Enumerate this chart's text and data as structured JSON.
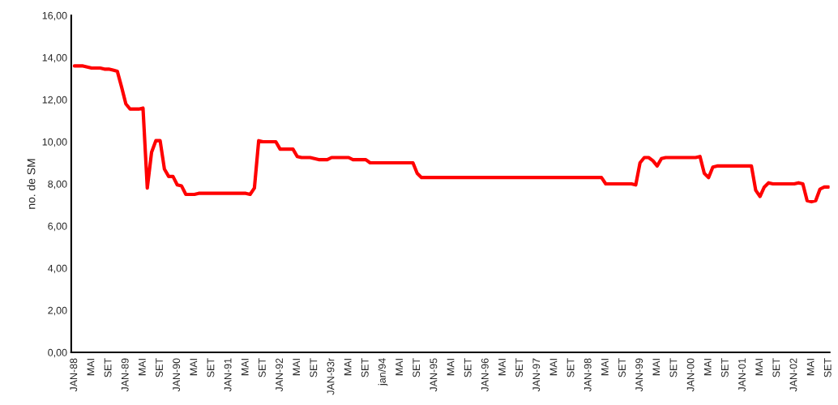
{
  "chart_data": {
    "type": "line",
    "ylabel": "no. de SM",
    "categories": [
      "JAN-88",
      null,
      null,
      null,
      "MAI",
      null,
      null,
      null,
      "SET",
      null,
      null,
      null,
      "JAN-89",
      null,
      null,
      null,
      "MAI",
      null,
      null,
      null,
      "SET",
      null,
      null,
      null,
      "JAN-90",
      null,
      null,
      null,
      "MAI",
      null,
      null,
      null,
      "SET",
      null,
      null,
      null,
      "JAN-91",
      null,
      null,
      null,
      "MAI",
      null,
      null,
      null,
      "SET",
      null,
      null,
      null,
      "JAN-92",
      null,
      null,
      null,
      "MAI",
      null,
      null,
      null,
      "SET",
      null,
      null,
      null,
      "JAN-93r",
      null,
      null,
      null,
      "MAI",
      null,
      null,
      null,
      "SET",
      null,
      null,
      null,
      "jan/94",
      null,
      null,
      null,
      "MAI",
      null,
      null,
      null,
      "SET",
      null,
      null,
      null,
      "JAN-95",
      null,
      null,
      null,
      "MAI",
      null,
      null,
      null,
      "SET",
      null,
      null,
      null,
      "JAN-96",
      null,
      null,
      null,
      "MAI",
      null,
      null,
      null,
      "SET",
      null,
      null,
      null,
      "JAN-97",
      null,
      null,
      null,
      "MAI",
      null,
      null,
      null,
      "SET",
      null,
      null,
      null,
      "JAN-98",
      null,
      null,
      null,
      "MAI",
      null,
      null,
      null,
      "SET",
      null,
      null,
      null,
      "JAN-99",
      null,
      null,
      null,
      "MAI",
      null,
      null,
      null,
      "SET",
      null,
      null,
      null,
      "JAN-00",
      null,
      null,
      null,
      "MAI",
      null,
      null,
      null,
      "SET",
      null,
      null,
      null,
      "JAN-01",
      null,
      null,
      null,
      "MAI",
      null,
      null,
      null,
      "SET",
      null,
      null,
      null,
      "JAN-02",
      null,
      null,
      null,
      "MAI",
      null,
      null,
      null,
      "SET"
    ],
    "series": [
      {
        "color": "#ff0000",
        "values": [
          13.6,
          13.6,
          13.6,
          13.55,
          13.5,
          13.5,
          13.5,
          13.45,
          13.45,
          13.4,
          13.35,
          12.6,
          11.8,
          11.55,
          11.55,
          11.55,
          11.6,
          7.8,
          9.5,
          10.05,
          10.05,
          8.7,
          8.35,
          8.35,
          7.95,
          7.9,
          7.5,
          7.5,
          7.5,
          7.55,
          7.55,
          7.55,
          7.55,
          7.55,
          7.55,
          7.55,
          7.55,
          7.55,
          7.55,
          7.55,
          7.55,
          7.5,
          7.8,
          10.05,
          10.0,
          10.0,
          10.0,
          10.0,
          9.65,
          9.65,
          9.65,
          9.65,
          9.3,
          9.25,
          9.25,
          9.25,
          9.2,
          9.15,
          9.15,
          9.15,
          9.25,
          9.25,
          9.25,
          9.25,
          9.25,
          9.15,
          9.15,
          9.15,
          9.15,
          9.0,
          9.0,
          9.0,
          9.0,
          9.0,
          9.0,
          9.0,
          9.0,
          9.0,
          9.0,
          9.0,
          8.5,
          8.3,
          8.3,
          8.3,
          8.3,
          8.3,
          8.3,
          8.3,
          8.3,
          8.3,
          8.3,
          8.3,
          8.3,
          8.3,
          8.3,
          8.3,
          8.3,
          8.3,
          8.3,
          8.3,
          8.3,
          8.3,
          8.3,
          8.3,
          8.3,
          8.3,
          8.3,
          8.3,
          8.3,
          8.3,
          8.3,
          8.3,
          8.3,
          8.3,
          8.3,
          8.3,
          8.3,
          8.3,
          8.3,
          8.3,
          8.3,
          8.3,
          8.3,
          8.3,
          8.0,
          8.0,
          8.0,
          8.0,
          8.0,
          8.0,
          8.0,
          7.95,
          9.0,
          9.25,
          9.25,
          9.1,
          8.85,
          9.2,
          9.25,
          9.25,
          9.25,
          9.25,
          9.25,
          9.25,
          9.25,
          9.25,
          9.3,
          8.5,
          8.3,
          8.8,
          8.85,
          8.85,
          8.85,
          8.85,
          8.85,
          8.85,
          8.85,
          8.85,
          8.85,
          7.7,
          7.4,
          7.85,
          8.05,
          8.0,
          8.0,
          8.0,
          8.0,
          8.0,
          8.0,
          8.05,
          8.0,
          7.2,
          7.15,
          7.2,
          7.75,
          7.85,
          7.85
        ]
      }
    ],
    "ylim": [
      0,
      16
    ],
    "yticks": [
      {
        "value": 0,
        "label": "0,00"
      },
      {
        "value": 2,
        "label": "2,00"
      },
      {
        "value": 4,
        "label": "4,00"
      },
      {
        "value": 6,
        "label": "6,00"
      },
      {
        "value": 8,
        "label": "8,00"
      },
      {
        "value": 10,
        "label": "10,00"
      },
      {
        "value": 12,
        "label": "12,00"
      },
      {
        "value": 14,
        "label": "14,00"
      },
      {
        "value": 16,
        "label": "16,00"
      }
    ],
    "grid": false,
    "marker": "none",
    "line_style": "solid"
  }
}
